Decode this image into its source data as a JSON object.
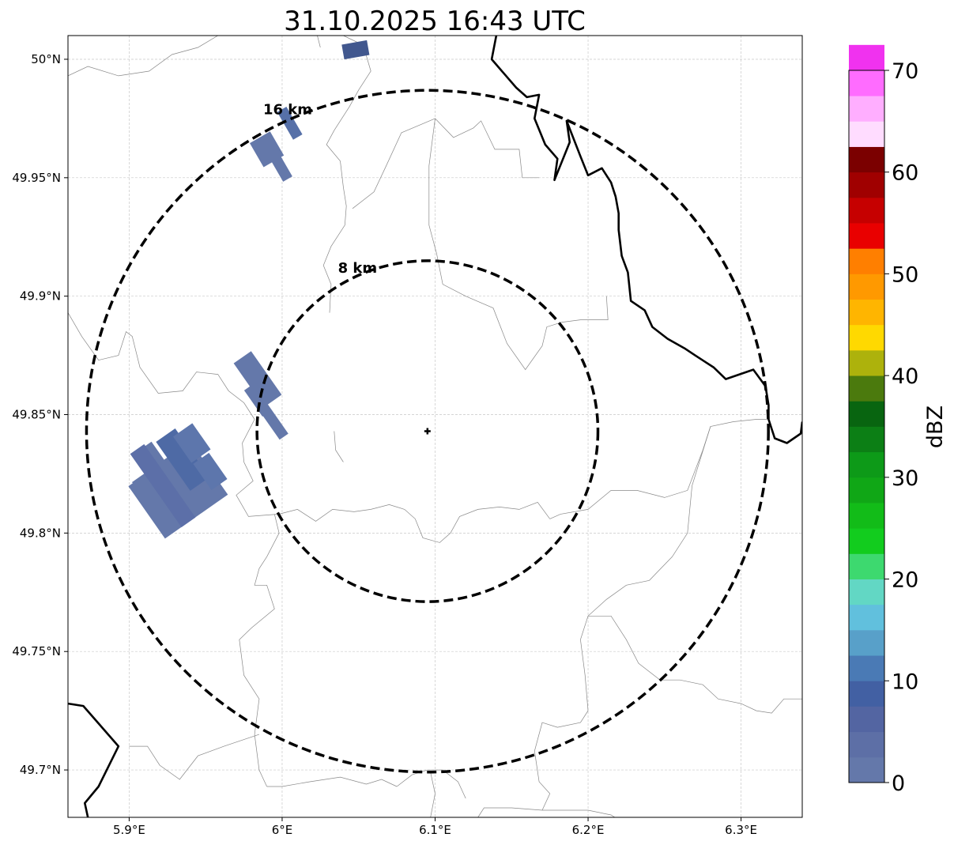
{
  "title": "31.10.2025 16:43 UTC",
  "map": {
    "lon_range": [
      5.86,
      6.34
    ],
    "lat_range": [
      49.68,
      50.01
    ],
    "gridlines": true,
    "x_ticks": [
      {
        "value": 5.9,
        "label": "5.9°E"
      },
      {
        "value": 6.0,
        "label": "6°E"
      },
      {
        "value": 6.1,
        "label": "6.1°E"
      },
      {
        "value": 6.2,
        "label": "6.2°E"
      },
      {
        "value": 6.3,
        "label": "6.3°E"
      }
    ],
    "y_ticks": [
      {
        "value": 50.0,
        "label": "50°N"
      },
      {
        "value": 49.95,
        "label": "49.95°N"
      },
      {
        "value": 49.9,
        "label": "49.9°N"
      },
      {
        "value": 49.85,
        "label": "49.85°N"
      },
      {
        "value": 49.8,
        "label": "49.8°N"
      },
      {
        "value": 49.75,
        "label": "49.75°N"
      },
      {
        "value": 49.7,
        "label": "49.7°N"
      }
    ],
    "radar_center": {
      "lon": 6.095,
      "lat": 49.843
    },
    "range_rings": [
      {
        "radius_km": 8,
        "label": "8 km"
      },
      {
        "radius_km": 16,
        "label": "16 km"
      }
    ],
    "echo_color": "#5c74a8",
    "border_color": "#000000",
    "boundary_color": "#888888",
    "borders": [
      [
        [
          5.86,
          49.728
        ],
        [
          5.87,
          49.727
        ],
        [
          5.893,
          49.71
        ],
        [
          5.88,
          49.693
        ],
        [
          5.871,
          49.686
        ],
        [
          5.873,
          49.68
        ]
      ],
      [
        [
          6.14,
          50.01
        ],
        [
          6.137,
          50.0
        ],
        [
          6.153,
          49.988
        ],
        [
          6.16,
          49.984
        ],
        [
          6.168,
          49.985
        ],
        [
          6.165,
          49.975
        ],
        [
          6.172,
          49.964
        ],
        [
          6.18,
          49.958
        ],
        [
          6.178,
          49.949
        ],
        [
          6.188,
          49.965
        ],
        [
          6.186,
          49.974
        ],
        [
          6.195,
          49.959
        ],
        [
          6.2,
          49.951
        ],
        [
          6.209,
          49.954
        ],
        [
          6.215,
          49.948
        ],
        [
          6.218,
          49.942
        ],
        [
          6.22,
          49.935
        ],
        [
          6.22,
          49.928
        ],
        [
          6.222,
          49.917
        ],
        [
          6.226,
          49.91
        ],
        [
          6.228,
          49.898
        ],
        [
          6.237,
          49.894
        ],
        [
          6.242,
          49.887
        ],
        [
          6.252,
          49.882
        ],
        [
          6.263,
          49.878
        ],
        [
          6.27,
          49.875
        ],
        [
          6.282,
          49.87
        ],
        [
          6.29,
          49.865
        ],
        [
          6.308,
          49.869
        ],
        [
          6.316,
          49.862
        ],
        [
          6.318,
          49.854
        ],
        [
          6.318,
          49.848
        ],
        [
          6.322,
          49.84
        ],
        [
          6.33,
          49.838
        ],
        [
          6.339,
          49.842
        ],
        [
          6.34,
          49.847
        ]
      ]
    ],
    "boundaries": [
      [
        [
          5.86,
          49.993
        ],
        [
          5.873,
          49.997
        ],
        [
          5.893,
          49.993
        ],
        [
          5.913,
          49.995
        ],
        [
          5.928,
          50.002
        ],
        [
          5.945,
          50.005
        ],
        [
          5.958,
          50.01
        ]
      ],
      [
        [
          6.04,
          50.01
        ],
        [
          6.053,
          50.006
        ],
        [
          6.058,
          49.995
        ],
        [
          6.05,
          49.987
        ],
        [
          6.044,
          49.98
        ],
        [
          6.034,
          49.97
        ],
        [
          6.029,
          49.964
        ],
        [
          6.038,
          49.957
        ],
        [
          6.04,
          49.946
        ],
        [
          6.042,
          49.938
        ],
        [
          6.041,
          49.93
        ],
        [
          6.032,
          49.921
        ],
        [
          6.027,
          49.913
        ],
        [
          6.032,
          49.905
        ],
        [
          6.031,
          49.893
        ]
      ],
      [
        [
          6.023,
          50.01
        ],
        [
          6.025,
          50.005
        ]
      ],
      [
        [
          6.1,
          49.975
        ],
        [
          6.078,
          49.969
        ],
        [
          6.068,
          49.955
        ],
        [
          6.06,
          49.944
        ],
        [
          6.046,
          49.937
        ]
      ],
      [
        [
          6.1,
          49.975
        ],
        [
          6.096,
          49.955
        ],
        [
          6.096,
          49.93
        ],
        [
          6.101,
          49.918
        ],
        [
          6.105,
          49.905
        ],
        [
          6.12,
          49.9
        ],
        [
          6.138,
          49.895
        ],
        [
          6.147,
          49.88
        ],
        [
          6.159,
          49.869
        ],
        [
          6.17,
          49.879
        ],
        [
          6.173,
          49.887
        ],
        [
          6.183,
          49.889
        ],
        [
          6.195,
          49.89
        ],
        [
          6.213,
          49.89
        ],
        [
          6.212,
          49.9
        ]
      ],
      [
        [
          6.1,
          49.975
        ],
        [
          6.112,
          49.967
        ],
        [
          6.125,
          49.971
        ],
        [
          6.13,
          49.974
        ],
        [
          6.139,
          49.962
        ],
        [
          6.155,
          49.962
        ],
        [
          6.157,
          49.95
        ],
        [
          6.168,
          49.95
        ]
      ],
      [
        [
          5.86,
          49.893
        ],
        [
          5.869,
          49.883
        ],
        [
          5.88,
          49.873
        ],
        [
          5.893,
          49.875
        ],
        [
          5.898,
          49.885
        ],
        [
          5.902,
          49.883
        ],
        [
          5.907,
          49.87
        ],
        [
          5.919,
          49.859
        ],
        [
          5.935,
          49.86
        ],
        [
          5.944,
          49.868
        ],
        [
          5.958,
          49.867
        ],
        [
          5.965,
          49.86
        ],
        [
          5.975,
          49.855
        ],
        [
          5.982,
          49.848
        ]
      ],
      [
        [
          5.982,
          49.848
        ],
        [
          5.974,
          49.838
        ],
        [
          5.975,
          49.83
        ],
        [
          5.981,
          49.822
        ],
        [
          5.97,
          49.816
        ],
        [
          5.978,
          49.807
        ],
        [
          5.998,
          49.808
        ],
        [
          6.01,
          49.81
        ],
        [
          6.022,
          49.805
        ],
        [
          6.033,
          49.81
        ],
        [
          6.047,
          49.809
        ],
        [
          6.058,
          49.81
        ],
        [
          6.07,
          49.812
        ],
        [
          6.08,
          49.81
        ],
        [
          6.087,
          49.806
        ],
        [
          6.092,
          49.798
        ],
        [
          6.103,
          49.796
        ],
        [
          6.11,
          49.8
        ],
        [
          6.116,
          49.807
        ],
        [
          6.128,
          49.81
        ],
        [
          6.142,
          49.811
        ],
        [
          6.155,
          49.81
        ],
        [
          6.167,
          49.813
        ],
        [
          6.175,
          49.806
        ]
      ],
      [
        [
          5.995,
          49.808
        ],
        [
          5.998,
          49.8
        ],
        [
          5.99,
          49.79
        ],
        [
          5.985,
          49.785
        ],
        [
          5.982,
          49.778
        ],
        [
          5.99,
          49.778
        ],
        [
          5.995,
          49.768
        ],
        [
          5.98,
          49.76
        ],
        [
          5.972,
          49.755
        ],
        [
          5.975,
          49.74
        ],
        [
          5.985,
          49.73
        ],
        [
          5.982,
          49.715
        ],
        [
          5.985,
          49.7
        ],
        [
          5.99,
          49.693
        ]
      ],
      [
        [
          5.9,
          49.71
        ],
        [
          5.912,
          49.71
        ],
        [
          5.92,
          49.702
        ],
        [
          5.933,
          49.696
        ],
        [
          5.945,
          49.706
        ],
        [
          5.962,
          49.71
        ],
        [
          5.985,
          49.715
        ]
      ],
      [
        [
          5.99,
          49.693
        ],
        [
          6.0,
          49.693
        ],
        [
          6.018,
          49.695
        ],
        [
          6.038,
          49.697
        ],
        [
          6.055,
          49.694
        ],
        [
          6.065,
          49.696
        ],
        [
          6.075,
          49.693
        ]
      ],
      [
        [
          6.075,
          49.693
        ],
        [
          6.085,
          49.698
        ],
        [
          6.095,
          49.7
        ],
        [
          6.105,
          49.7
        ],
        [
          6.115,
          49.695
        ],
        [
          6.12,
          49.688
        ]
      ],
      [
        [
          6.097,
          49.68
        ],
        [
          6.1,
          49.69
        ],
        [
          6.097,
          49.699
        ]
      ],
      [
        [
          6.175,
          49.806
        ],
        [
          6.182,
          49.808
        ],
        [
          6.2,
          49.81
        ],
        [
          6.215,
          49.818
        ],
        [
          6.232,
          49.818
        ],
        [
          6.25,
          49.815
        ],
        [
          6.265,
          49.818
        ],
        [
          6.275,
          49.835
        ],
        [
          6.28,
          49.845
        ],
        [
          6.295,
          49.847
        ],
        [
          6.31,
          49.848
        ],
        [
          6.318,
          49.848
        ]
      ],
      [
        [
          6.28,
          49.845
        ],
        [
          6.268,
          49.82
        ],
        [
          6.265,
          49.8
        ],
        [
          6.255,
          49.79
        ],
        [
          6.24,
          49.78
        ],
        [
          6.225,
          49.778
        ],
        [
          6.212,
          49.772
        ],
        [
          6.2,
          49.765
        ],
        [
          6.195,
          49.755
        ],
        [
          6.198,
          49.74
        ],
        [
          6.2,
          49.725
        ],
        [
          6.195,
          49.72
        ],
        [
          6.18,
          49.718
        ],
        [
          6.17,
          49.72
        ],
        [
          6.165,
          49.708
        ],
        [
          6.168,
          49.695
        ],
        [
          6.175,
          49.69
        ]
      ],
      [
        [
          6.2,
          49.765
        ],
        [
          6.215,
          49.765
        ],
        [
          6.225,
          49.755
        ],
        [
          6.233,
          49.745
        ],
        [
          6.247,
          49.738
        ],
        [
          6.26,
          49.738
        ],
        [
          6.275,
          49.736
        ],
        [
          6.285,
          49.73
        ],
        [
          6.3,
          49.728
        ],
        [
          6.31,
          49.725
        ],
        [
          6.32,
          49.724
        ],
        [
          6.328,
          49.73
        ],
        [
          6.34,
          49.73
        ]
      ],
      [
        [
          6.128,
          49.68
        ],
        [
          6.132,
          49.684
        ],
        [
          6.15,
          49.684
        ],
        [
          6.17,
          49.683
        ],
        [
          6.2,
          49.683
        ],
        [
          6.215,
          49.681
        ],
        [
          6.22,
          49.679
        ]
      ],
      [
        [
          6.17,
          49.683
        ],
        [
          6.175,
          49.69
        ]
      ],
      [
        [
          6.034,
          49.843
        ],
        [
          6.035,
          49.835
        ],
        [
          6.04,
          49.83
        ]
      ]
    ],
    "echoes": [
      {
        "lon": 6.005,
        "lat": 49.973,
        "angle_deg": 60,
        "length_km": 1.5,
        "width_km": 0.5,
        "fill": "#5670a8"
      },
      {
        "lon": 5.996,
        "lat": 49.958,
        "angle_deg": 60,
        "length_km": 2.2,
        "width_km": 0.5,
        "fill": "#6478aa"
      },
      {
        "lon": 5.99,
        "lat": 49.962,
        "angle_deg": 60,
        "length_km": 1.3,
        "width_km": 1.1,
        "fill": "#6478aa"
      },
      {
        "lon": 6.048,
        "lat": 50.004,
        "angle_deg": -10,
        "length_km": 1.2,
        "width_km": 0.7,
        "fill": "#41578e"
      },
      {
        "lon": 5.984,
        "lat": 49.865,
        "angle_deg": 55,
        "length_km": 2.5,
        "width_km": 1.0,
        "fill": "#6478aa"
      },
      {
        "lon": 5.984,
        "lat": 49.856,
        "angle_deg": 55,
        "length_km": 1.5,
        "width_km": 0.5,
        "fill": "#6478aa"
      },
      {
        "lon": 5.99,
        "lat": 49.851,
        "angle_deg": 55,
        "length_km": 2.8,
        "width_km": 0.5,
        "fill": "#6478aa"
      },
      {
        "lon": 5.932,
        "lat": 49.818,
        "angle_deg": -35,
        "length_km": 3.6,
        "width_km": 3.0,
        "fill": "#6478aa"
      },
      {
        "lon": 5.92,
        "lat": 49.822,
        "angle_deg": -35,
        "length_km": 2.2,
        "width_km": 1.4,
        "fill": "#6478aa"
      },
      {
        "lon": 5.916,
        "lat": 49.831,
        "angle_deg": 55,
        "length_km": 1.5,
        "width_km": 0.8,
        "fill": "#6478aa"
      },
      {
        "lon": 5.922,
        "lat": 49.82,
        "angle_deg": 55,
        "length_km": 4.2,
        "width_km": 0.8,
        "fill": "#5c6fa8"
      },
      {
        "lon": 5.935,
        "lat": 49.831,
        "angle_deg": 55,
        "length_km": 2.8,
        "width_km": 1.1,
        "fill": "#4e6aa5"
      },
      {
        "lon": 5.941,
        "lat": 49.838,
        "angle_deg": 55,
        "length_km": 1.5,
        "width_km": 1.1,
        "fill": "#5d76ac"
      },
      {
        "lon": 5.953,
        "lat": 49.826,
        "angle_deg": 55,
        "length_km": 1.5,
        "width_km": 0.9,
        "fill": "#5d76ac"
      }
    ]
  },
  "colorbar": {
    "label": "dBZ",
    "min": 0,
    "max": 70,
    "step": 2.5,
    "ticks": [
      0,
      10,
      20,
      30,
      40,
      50,
      60,
      70
    ],
    "colors": [
      "#6478aa",
      "#5d6fa6",
      "#5365a2",
      "#4260a3",
      "#4a7ab5",
      "#58a0c9",
      "#61c0dd",
      "#62d7c4",
      "#3dd96f",
      "#12cc1e",
      "#12bc18",
      "#10a716",
      "#0d9a18",
      "#0c7f15",
      "#086510",
      "#4b7a0d",
      "#adb20c",
      "#ffd900",
      "#ffb500",
      "#ff9900",
      "#ff7f00",
      "#e90000",
      "#c60000",
      "#a00000",
      "#7b0000",
      "#ffdcff",
      "#ffaeff",
      "#ff6cff",
      "#f032ef"
    ]
  }
}
